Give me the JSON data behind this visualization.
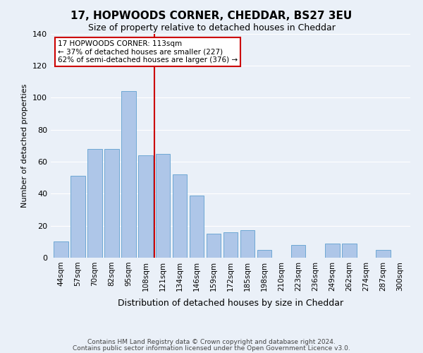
{
  "title": "17, HOPWOODS CORNER, CHEDDAR, BS27 3EU",
  "subtitle": "Size of property relative to detached houses in Cheddar",
  "xlabel": "Distribution of detached houses by size in Cheddar",
  "ylabel": "Number of detached properties",
  "bin_labels": [
    "44sqm",
    "57sqm",
    "70sqm",
    "82sqm",
    "95sqm",
    "108sqm",
    "121sqm",
    "134sqm",
    "146sqm",
    "159sqm",
    "172sqm",
    "185sqm",
    "198sqm",
    "210sqm",
    "223sqm",
    "236sqm",
    "249sqm",
    "262sqm",
    "274sqm",
    "287sqm",
    "300sqm"
  ],
  "bar_heights": [
    10,
    51,
    68,
    68,
    104,
    64,
    65,
    52,
    39,
    15,
    16,
    17,
    5,
    0,
    8,
    0,
    9,
    9,
    0,
    5,
    0
  ],
  "bar_color": "#aec6e8",
  "bar_edge_color": "#6fa8d4",
  "vline_color": "#cc0000",
  "annotation_text": "17 HOPWOODS CORNER: 113sqm\n← 37% of detached houses are smaller (227)\n62% of semi-detached houses are larger (376) →",
  "annotation_box_color": "#ffffff",
  "annotation_box_edge_color": "#cc0000",
  "ylim": [
    0,
    140
  ],
  "yticks": [
    0,
    20,
    40,
    60,
    80,
    100,
    120,
    140
  ],
  "background_color": "#eaf0f8",
  "grid_color": "#ffffff",
  "footer_line1": "Contains HM Land Registry data © Crown copyright and database right 2024.",
  "footer_line2": "Contains public sector information licensed under the Open Government Licence v3.0."
}
